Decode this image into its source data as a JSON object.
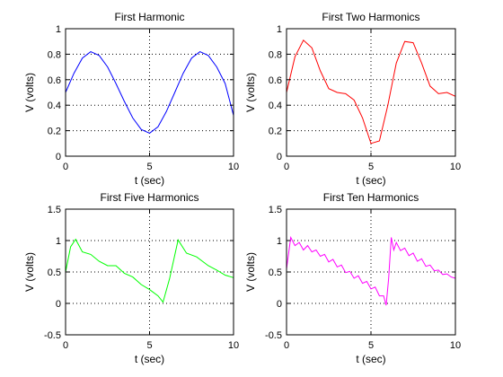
{
  "chart_data": [
    {
      "type": "line",
      "title": "First Harmonic",
      "xlabel": "t (sec)",
      "ylabel": "V (volts)",
      "xlim": [
        0,
        10
      ],
      "ylim": [
        0,
        1
      ],
      "xticks": [
        0,
        5,
        10
      ],
      "yticks": [
        0,
        0.2,
        0.4,
        0.6,
        0.8,
        1
      ],
      "ytick_labels": [
        "0",
        "0.2",
        "0.4",
        "0.6",
        "0.8",
        "1"
      ],
      "grid": true,
      "series": [
        {
          "color": "#0000ff",
          "x": [
            0,
            0.5,
            1,
            1.5,
            2,
            2.5,
            3,
            3.5,
            4,
            4.5,
            5,
            5.5,
            6,
            6.5,
            7,
            7.5,
            8,
            8.5,
            9,
            9.5,
            10
          ],
          "y": [
            0.5,
            0.65,
            0.77,
            0.82,
            0.79,
            0.7,
            0.57,
            0.43,
            0.3,
            0.21,
            0.18,
            0.23,
            0.35,
            0.5,
            0.65,
            0.77,
            0.82,
            0.79,
            0.7,
            0.57,
            0.32
          ]
        }
      ]
    },
    {
      "type": "line",
      "title": "First Two Harmonics",
      "xlabel": "t (sec)",
      "ylabel": "V (volts)",
      "xlim": [
        0,
        10
      ],
      "ylim": [
        0,
        1
      ],
      "xticks": [
        0,
        5,
        10
      ],
      "yticks": [
        0,
        0.2,
        0.4,
        0.6,
        0.8,
        1
      ],
      "ytick_labels": [
        "0",
        "0.2",
        "0.4",
        "0.6",
        "0.8",
        "1"
      ],
      "grid": true,
      "series": [
        {
          "color": "#ff0000",
          "x": [
            0,
            0.5,
            1,
            1.5,
            2,
            2.5,
            3,
            3.5,
            4,
            4.5,
            5,
            5.5,
            6,
            6.5,
            7,
            7.5,
            8,
            8.5,
            9,
            9.5,
            10
          ],
          "y": [
            0.5,
            0.78,
            0.91,
            0.85,
            0.67,
            0.53,
            0.5,
            0.49,
            0.44,
            0.3,
            0.1,
            0.12,
            0.4,
            0.73,
            0.9,
            0.89,
            0.73,
            0.55,
            0.49,
            0.5,
            0.47
          ]
        }
      ]
    },
    {
      "type": "line",
      "title": "First Five Harmonics",
      "xlabel": "t (sec)",
      "ylabel": "V (volts)",
      "xlim": [
        0,
        10
      ],
      "ylim": [
        -0.5,
        1.5
      ],
      "xticks": [
        0,
        5,
        10
      ],
      "yticks": [
        -0.5,
        0,
        0.5,
        1,
        1.5
      ],
      "ytick_labels": [
        "-0.5",
        "0",
        "0.5",
        "1",
        "1.5"
      ],
      "grid": true,
      "series": [
        {
          "color": "#00ff00",
          "x": [
            0,
            0.3,
            0.6,
            1,
            1.5,
            2,
            2.5,
            3,
            3.5,
            4,
            4.5,
            5,
            5.5,
            5.8,
            6.2,
            6.7,
            7.2,
            7.8,
            8.5,
            9,
            9.5,
            10
          ],
          "y": [
            0.5,
            0.9,
            1.02,
            0.82,
            0.78,
            0.67,
            0.6,
            0.6,
            0.48,
            0.42,
            0.3,
            0.22,
            0.12,
            0.02,
            0.4,
            1.01,
            0.8,
            0.74,
            0.6,
            0.53,
            0.45,
            0.41
          ]
        }
      ]
    },
    {
      "type": "line",
      "title": "First Ten Harmonics",
      "xlabel": "t (sec)",
      "ylabel": "V (volts)",
      "xlim": [
        0,
        10
      ],
      "ylim": [
        -0.5,
        1.5
      ],
      "xticks": [
        0,
        5,
        10
      ],
      "yticks": [
        -0.5,
        0,
        0.5,
        1,
        1.5
      ],
      "ytick_labels": [
        "-0.5",
        "0",
        "0.5",
        "1",
        "1.5"
      ],
      "grid": true,
      "series": [
        {
          "color": "#ff00ff",
          "x": [
            0,
            0.25,
            0.5,
            0.75,
            1,
            1.25,
            1.5,
            1.75,
            2,
            2.25,
            2.5,
            2.75,
            3,
            3.25,
            3.5,
            3.75,
            4,
            4.25,
            4.5,
            4.75,
            5,
            5.25,
            5.5,
            5.75,
            5.9,
            6.05,
            6.2,
            6.35,
            6.5,
            6.75,
            7,
            7.25,
            7.5,
            7.75,
            8,
            8.25,
            8.5,
            8.75,
            9,
            9.25,
            9.5,
            9.75,
            10
          ],
          "y": [
            0.55,
            1.05,
            0.92,
            0.97,
            0.85,
            0.92,
            0.82,
            0.85,
            0.75,
            0.78,
            0.66,
            0.7,
            0.58,
            0.61,
            0.49,
            0.51,
            0.4,
            0.44,
            0.32,
            0.35,
            0.23,
            0.26,
            0.12,
            0.12,
            -0.03,
            0.4,
            1.05,
            0.85,
            0.97,
            0.84,
            0.88,
            0.76,
            0.8,
            0.67,
            0.71,
            0.59,
            0.61,
            0.52,
            0.53,
            0.46,
            0.47,
            0.42,
            0.4
          ]
        }
      ]
    }
  ]
}
